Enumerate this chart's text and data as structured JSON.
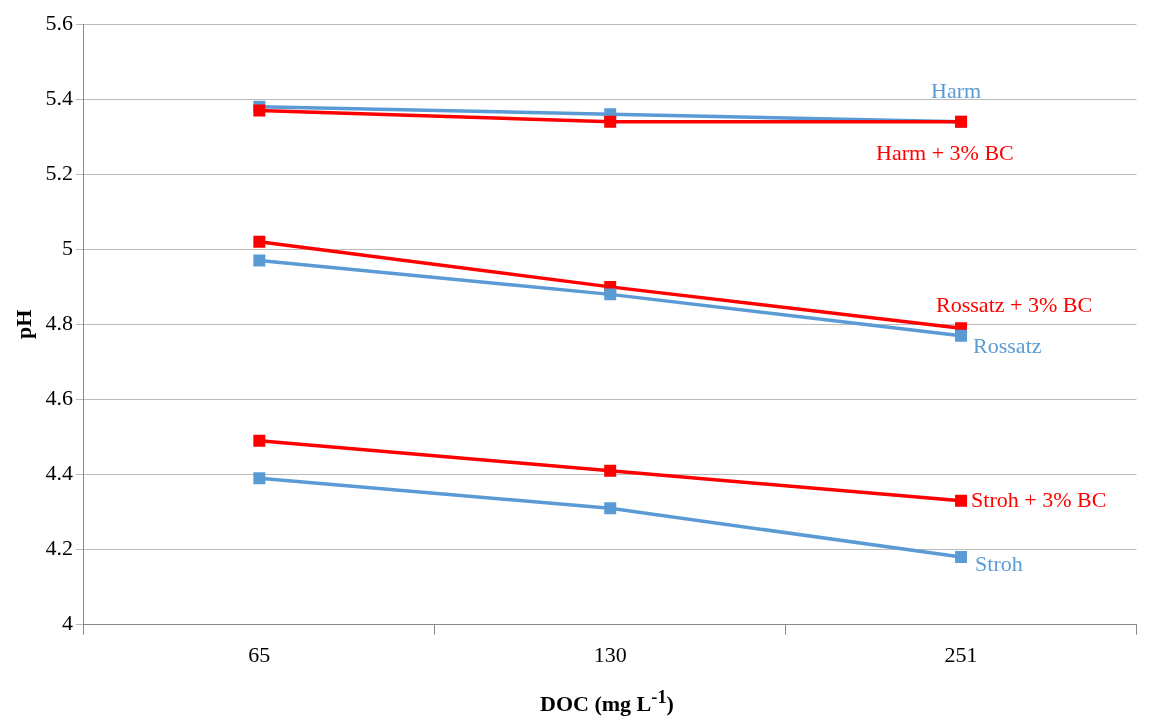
{
  "chart_data": {
    "type": "line",
    "xlabel": "DOC (mg L$^{-1}$)",
    "ylabel": "pH",
    "categories": [
      "65",
      "130",
      "251"
    ],
    "series": [
      {
        "name": "Harm",
        "color": "#5b9bd5",
        "values": [
          5.38,
          5.36,
          5.34
        ]
      },
      {
        "name": "Harm + 3% BC",
        "color": "#ff0000",
        "values": [
          5.37,
          5.34,
          5.34
        ]
      },
      {
        "name": "Rossatz + 3% BC",
        "color": "#ff0000",
        "values": [
          5.02,
          4.9,
          4.79
        ]
      },
      {
        "name": "Rossatz",
        "color": "#5b9bd5",
        "values": [
          4.97,
          4.88,
          4.77
        ]
      },
      {
        "name": "Stroh + 3% BC",
        "color": "#ff0000",
        "values": [
          4.49,
          4.41,
          4.33
        ]
      },
      {
        "name": "Stroh",
        "color": "#5b9bd5",
        "values": [
          4.39,
          4.31,
          4.18
        ]
      }
    ],
    "ylim": [
      4,
      5.6
    ],
    "yticks": [
      4,
      4.2,
      4.4,
      4.6,
      4.8,
      5,
      5.2,
      5.4,
      5.6
    ],
    "grid": "y",
    "legend": false,
    "marker": "square",
    "line_style": "solid"
  }
}
